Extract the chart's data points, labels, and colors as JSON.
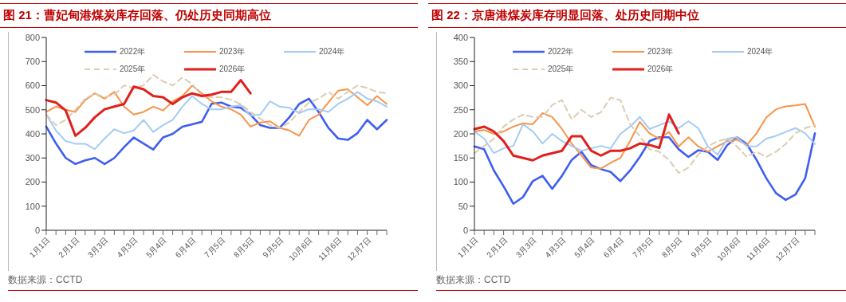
{
  "chart_data": [
    {
      "type": "line",
      "title": "图 21：曹妃甸港煤炭库存回落、仍处历史同期高位",
      "annotations": [
        "数据来源：CCTD"
      ],
      "categories": [
        "1月1日",
        null,
        null,
        "2月1日",
        null,
        null,
        "3月3日",
        null,
        null,
        "4月3日",
        null,
        null,
        "5月4日",
        null,
        null,
        "6月4日",
        null,
        null,
        "7月5日",
        null,
        null,
        "8月5日",
        null,
        null,
        "9月5日",
        null,
        null,
        "10月6日",
        null,
        null,
        "11月6日",
        null,
        null,
        "12月7日",
        null,
        null
      ],
      "ylim": [
        0,
        800
      ],
      "yticks": [
        0,
        100,
        200,
        300,
        400,
        500,
        600,
        700,
        800
      ],
      "grid": false,
      "legend": "top",
      "marker": "none",
      "series": [
        {
          "name": "2022年",
          "color": "#3f5ef0",
          "values": [
            430,
            360,
            300,
            275,
            290,
            300,
            275,
            300,
            345,
            385,
            360,
            335,
            385,
            400,
            430,
            440,
            450,
            525,
            530,
            513,
            508,
            480,
            436,
            425,
            425,
            469,
            524,
            546,
            491,
            425,
            381,
            375,
            403,
            458,
            419,
            458
          ]
        },
        {
          "name": "2023年",
          "color": "#f7944a",
          "values": [
            491,
            513,
            500,
            491,
            540,
            568,
            546,
            574,
            513,
            480,
            491,
            513,
            497,
            535,
            557,
            600,
            568,
            535,
            513,
            502,
            480,
            430,
            447,
            452,
            425,
            414,
            392,
            458,
            480,
            530,
            579,
            585,
            552,
            519,
            557,
            524
          ]
        },
        {
          "name": "2024年",
          "color": "#a3cbf5",
          "values": [
            480,
            414,
            370,
            359,
            359,
            337,
            381,
            419,
            403,
            414,
            458,
            408,
            436,
            458,
            513,
            557,
            524,
            502,
            502,
            513,
            519,
            475,
            480,
            535,
            513,
            508,
            486,
            502,
            502,
            491,
            524,
            546,
            574,
            546,
            535,
            513
          ]
        },
        {
          "name": "2025年",
          "color": "#dccdb3",
          "line_style": "dashed",
          "values": [
            480,
            436,
            458,
            500,
            546,
            568,
            552,
            563,
            601,
            590,
            601,
            645,
            618,
            601,
            634,
            607,
            557,
            552,
            552,
            541,
            524,
            491,
            463,
            436,
            425,
            447,
            491,
            530,
            546,
            574,
            546,
            574,
            601,
            590,
            574,
            568
          ]
        },
        {
          "name": "2026年",
          "color": "#e0201c",
          "values": [
            540,
            530,
            497,
            392,
            425,
            469,
            502,
            513,
            524,
            596,
            585,
            557,
            552,
            524,
            552,
            568,
            557,
            563,
            574,
            574,
            623,
            568,
            null,
            null,
            null,
            null,
            null,
            null,
            null,
            null,
            null,
            null,
            null,
            null,
            null,
            null
          ]
        }
      ]
    },
    {
      "type": "line",
      "title": "图 22：京唐港煤炭库存明显回落、处历史同期中位",
      "annotations": [
        "数据来源：CCTD"
      ],
      "categories": [
        "1月1日",
        null,
        null,
        "2月1日",
        null,
        null,
        "3月3日",
        null,
        null,
        "4月3日",
        null,
        null,
        "5月4日",
        null,
        null,
        "6月4日",
        null,
        null,
        "7月5日",
        null,
        null,
        "8月5日",
        null,
        null,
        "9月5日",
        null,
        null,
        "10月6日",
        null,
        null,
        "11月6日",
        null,
        null,
        "12月7日",
        null,
        null
      ],
      "ylim": [
        0,
        400
      ],
      "yticks": [
        0,
        50,
        100,
        150,
        200,
        250,
        300,
        350,
        400
      ],
      "grid": false,
      "legend": "top",
      "marker": "none",
      "series": [
        {
          "name": "2022年",
          "color": "#3f5ef0",
          "values": [
            174,
            168,
            124,
            91,
            55,
            69,
            102,
            113,
            86,
            113,
            146,
            163,
            135,
            127,
            121,
            102,
            124,
            152,
            185,
            193,
            193,
            168,
            152,
            166,
            163,
            146,
            177,
            193,
            179,
            146,
            108,
            77,
            63,
            74,
            108,
            201
          ]
        },
        {
          "name": "2023年",
          "color": "#f7944a",
          "values": [
            205,
            208,
            200,
            205,
            215,
            222,
            220,
            243,
            235,
            210,
            180,
            155,
            130,
            128,
            140,
            150,
            185,
            225,
            201,
            190,
            204,
            174,
            193,
            174,
            163,
            174,
            185,
            188,
            177,
            201,
            234,
            251,
            257,
            259,
            262,
            215
          ]
        },
        {
          "name": "2024年",
          "color": "#a3cbf5",
          "values": [
            205,
            190,
            160,
            170,
            175,
            220,
            205,
            180,
            200,
            185,
            175,
            165,
            170,
            175,
            170,
            200,
            215,
            235,
            210,
            218,
            226,
            212,
            226,
            212,
            174,
            157,
            190,
            193,
            174,
            174,
            190,
            196,
            204,
            212,
            201,
            179
          ]
        },
        {
          "name": "2025年",
          "color": "#dccdb3",
          "line_style": "dashed",
          "values": [
            160,
            175,
            190,
            215,
            230,
            240,
            235,
            235,
            260,
            270,
            230,
            250,
            235,
            245,
            275,
            270,
            220,
            195,
            168,
            163,
            146,
            119,
            130,
            157,
            174,
            185,
            190,
            174,
            152,
            163,
            152,
            163,
            179,
            201,
            212,
            218
          ]
        },
        {
          "name": "2026年",
          "color": "#e0201c",
          "values": [
            210,
            215,
            205,
            185,
            155,
            150,
            145,
            155,
            160,
            165,
            195,
            195,
            165,
            155,
            165,
            165,
            170,
            180,
            177,
            171,
            240,
            201,
            null,
            null,
            null,
            null,
            null,
            null,
            null,
            null,
            null,
            null,
            null,
            null,
            null,
            null
          ]
        }
      ]
    }
  ]
}
